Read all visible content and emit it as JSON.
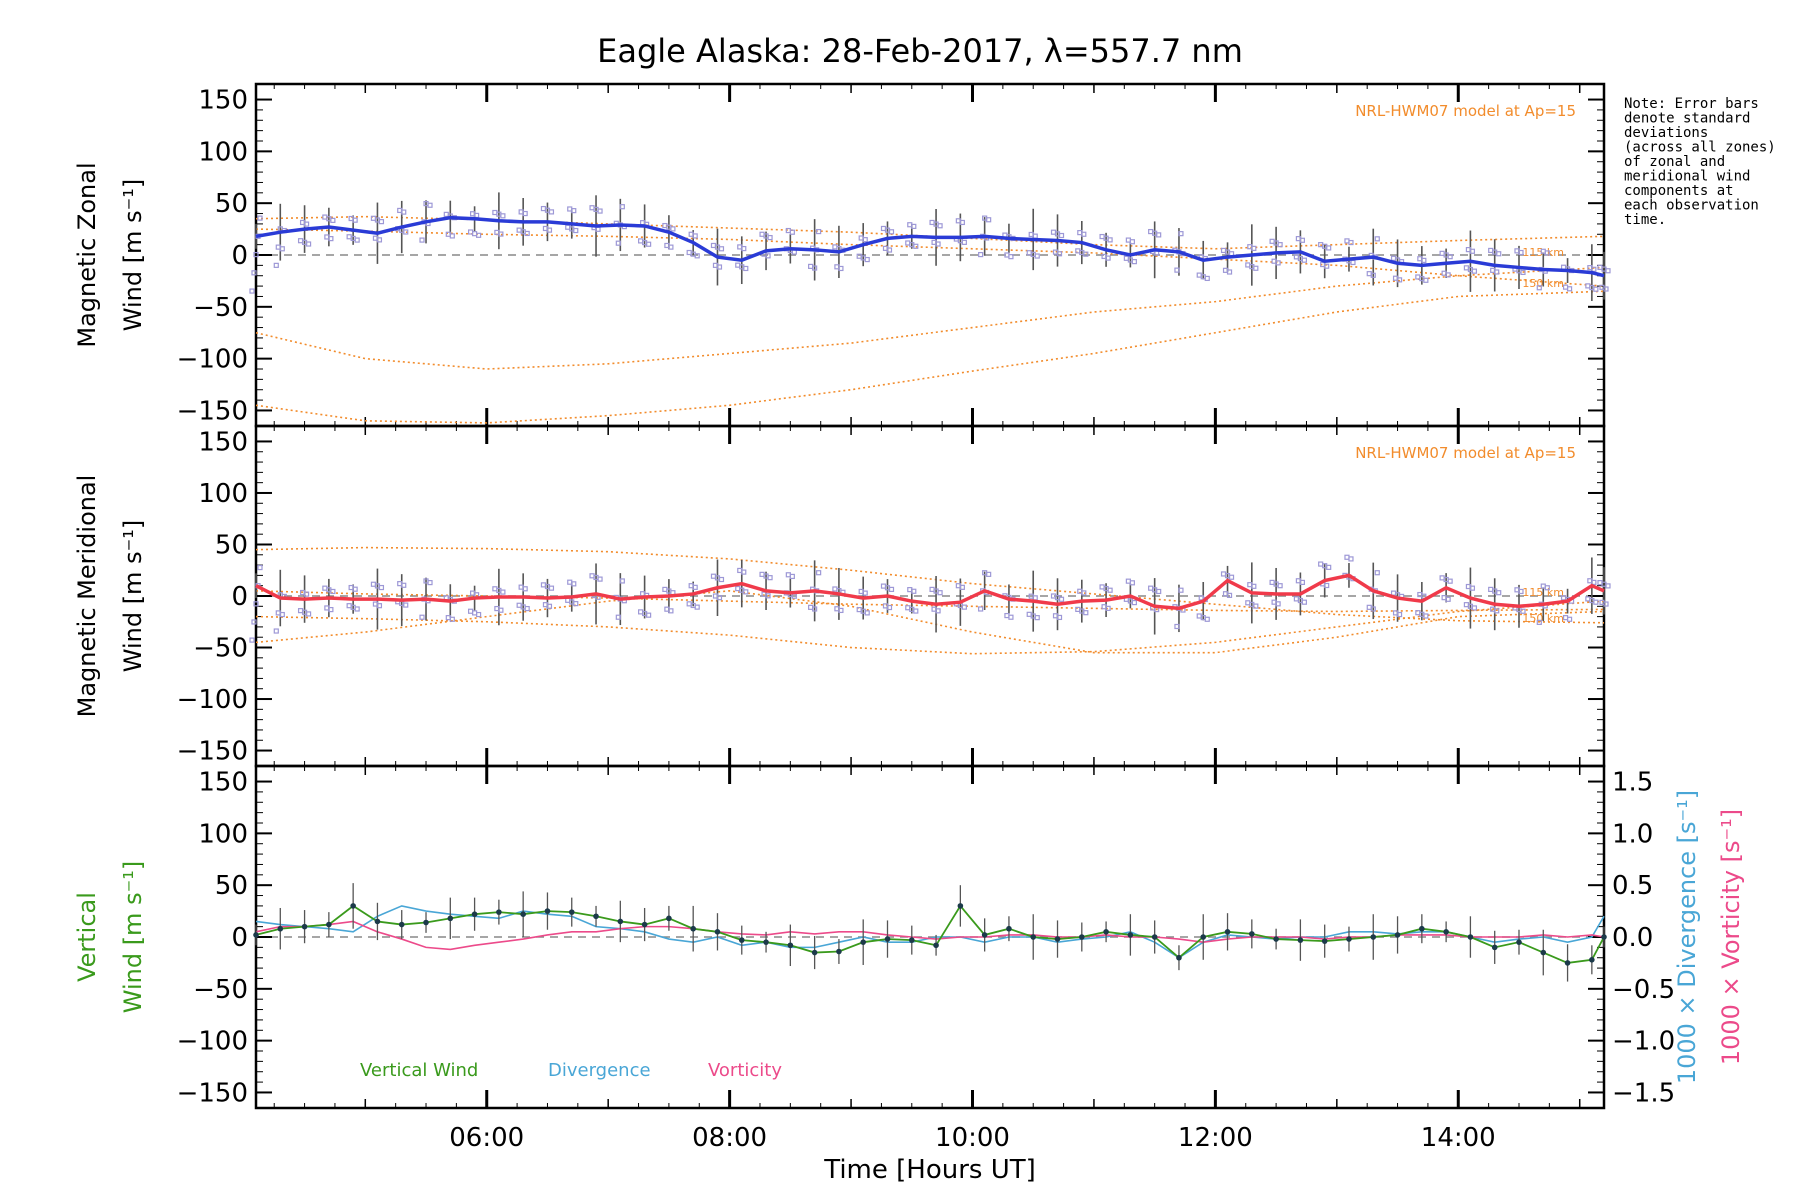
{
  "title": "Eagle Alaska: 28-Feb-2017, λ=557.7 nm",
  "colors": {
    "zonal": "#2a3bd6",
    "meridional": "#f03a4a",
    "vertical": "#3a9a1c",
    "divergence": "#49a6d6",
    "vorticity": "#ec4a8a",
    "model": "#f28c2c",
    "scatter": "#9d98d6",
    "errorbar": "#555555"
  },
  "note": {
    "lines": [
      "Note: Error bars",
      "denote standard",
      "deviations",
      "(across all zones)",
      "of zonal and",
      "meridional wind",
      "components at",
      "each observation",
      "time."
    ]
  },
  "chart_data": [
    {
      "type": "line",
      "title": "",
      "ylabel_lines": [
        "Magnetic Zonal",
        "Wind [m s⁻¹]"
      ],
      "xlim": [
        4.1,
        15.2
      ],
      "ylim": [
        -165,
        165
      ],
      "yticks": [
        150,
        100,
        50,
        0,
        -50,
        -100,
        -150
      ],
      "model_label": "NRL-HWM07 model at Ap=15",
      "model_alt_labels": [
        "115 km",
        "150 km"
      ],
      "series": [
        {
          "x": [
            4.1,
            4.3,
            4.5,
            4.7,
            4.9,
            5.1,
            5.3,
            5.5,
            5.7,
            5.9,
            6.1,
            6.3,
            6.5,
            6.7,
            6.9,
            7.1,
            7.3,
            7.5,
            7.7,
            7.9,
            8.1,
            8.3,
            8.5,
            8.7,
            8.9,
            9.1,
            9.3,
            9.5,
            9.7,
            9.9,
            10.1,
            10.3,
            10.5,
            10.7,
            10.9,
            11.1,
            11.3,
            11.5,
            11.7,
            11.9,
            12.1,
            12.3,
            12.5,
            12.7,
            12.9,
            13.1,
            13.3,
            13.5,
            13.7,
            13.9,
            14.1,
            14.3,
            14.5,
            14.7,
            14.9,
            15.1,
            15.2
          ],
          "y": [
            18,
            22,
            25,
            27,
            24,
            21,
            27,
            32,
            36,
            35,
            33,
            32,
            32,
            30,
            28,
            29,
            28,
            22,
            12,
            -2,
            -5,
            4,
            6,
            5,
            3,
            10,
            16,
            18,
            17,
            17,
            18,
            16,
            15,
            14,
            12,
            5,
            0,
            5,
            3,
            -5,
            -2,
            0,
            2,
            3,
            -6,
            -4,
            -2,
            -8,
            -10,
            -8,
            -6,
            -10,
            -12,
            -14,
            -15,
            -17,
            -20
          ]
        }
      ],
      "model_curves": [
        {
          "x": [
            4.1,
            5,
            6,
            7,
            8,
            9,
            10,
            11,
            12,
            13,
            14,
            15.2
          ],
          "y": [
            35,
            37,
            34,
            30,
            26,
            22,
            16,
            10,
            6,
            10,
            14,
            18
          ]
        },
        {
          "x": [
            4.1,
            5,
            6,
            7,
            8,
            9,
            10,
            11,
            12,
            13,
            14,
            15.2
          ],
          "y": [
            25,
            23,
            20,
            18,
            15,
            10,
            6,
            2,
            -4,
            -10,
            -20,
            -30
          ]
        },
        {
          "x": [
            4.1,
            5,
            6,
            7,
            8,
            9,
            10,
            11,
            12,
            13,
            14,
            15.2
          ],
          "y": [
            -75,
            -100,
            -110,
            -105,
            -95,
            -85,
            -70,
            -55,
            -45,
            -30,
            -20,
            -12
          ]
        },
        {
          "x": [
            4.1,
            5,
            6,
            7,
            8,
            9,
            10,
            11,
            12,
            13,
            14,
            15.2
          ],
          "y": [
            -145,
            -160,
            -162,
            -155,
            -145,
            -130,
            -112,
            -95,
            -75,
            -55,
            -40,
            -35
          ]
        }
      ]
    },
    {
      "type": "line",
      "title": "",
      "ylabel_lines": [
        "Magnetic Meridional",
        "Wind [m s⁻¹]"
      ],
      "xlim": [
        4.1,
        15.2
      ],
      "ylim": [
        -165,
        165
      ],
      "yticks": [
        150,
        100,
        50,
        0,
        -50,
        -100,
        -150
      ],
      "model_label": "NRL-HWM07 model at Ap=15",
      "model_alt_labels": [
        "115 km",
        "150 km"
      ],
      "series": [
        {
          "x": [
            4.1,
            4.3,
            4.5,
            4.7,
            4.9,
            5.1,
            5.3,
            5.5,
            5.7,
            5.9,
            6.1,
            6.3,
            6.5,
            6.7,
            6.9,
            7.1,
            7.3,
            7.5,
            7.7,
            7.9,
            8.1,
            8.3,
            8.5,
            8.7,
            8.9,
            9.1,
            9.3,
            9.5,
            9.7,
            9.9,
            10.1,
            10.3,
            10.5,
            10.7,
            10.9,
            11.1,
            11.3,
            11.5,
            11.7,
            11.9,
            12.1,
            12.3,
            12.5,
            12.7,
            12.9,
            13.1,
            13.3,
            13.5,
            13.7,
            13.9,
            14.1,
            14.3,
            14.5,
            14.7,
            14.9,
            15.1,
            15.2
          ],
          "y": [
            10,
            -2,
            -3,
            -2,
            -3,
            -3,
            -4,
            -3,
            -5,
            -2,
            -1,
            -1,
            -2,
            -1,
            2,
            -3,
            -1,
            0,
            2,
            8,
            12,
            5,
            3,
            5,
            2,
            -2,
            0,
            -5,
            -8,
            -6,
            5,
            -3,
            -5,
            -8,
            -5,
            -4,
            0,
            -10,
            -12,
            -5,
            15,
            3,
            2,
            2,
            15,
            20,
            5,
            -2,
            -5,
            8,
            -2,
            -8,
            -10,
            -8,
            -5,
            10,
            5
          ]
        }
      ],
      "model_curves": [
        {
          "x": [
            4.1,
            5,
            6,
            7,
            8,
            9,
            10,
            11,
            12,
            13,
            14,
            15.2
          ],
          "y": [
            45,
            47,
            46,
            43,
            36,
            25,
            12,
            2,
            -8,
            -18,
            -24,
            -26
          ]
        },
        {
          "x": [
            4.1,
            5,
            6,
            7,
            8,
            9,
            10,
            11,
            12,
            13,
            14,
            15.2
          ],
          "y": [
            5,
            2,
            0,
            -2,
            -5,
            -8,
            -10,
            -12,
            -14,
            -15,
            -14,
            -13
          ]
        },
        {
          "x": [
            4.1,
            5,
            6,
            7,
            8,
            9,
            10,
            11,
            12,
            13,
            14,
            15.2
          ],
          "y": [
            -45,
            -35,
            -20,
            -5,
            5,
            -10,
            -35,
            -55,
            -55,
            -40,
            -20,
            -15
          ]
        },
        {
          "x": [
            4.1,
            5,
            6,
            7,
            8,
            9,
            10,
            11,
            12,
            13,
            14,
            15.2
          ],
          "y": [
            -20,
            -22,
            -25,
            -30,
            -38,
            -50,
            -56,
            -54,
            -45,
            -30,
            -15,
            -5
          ]
        }
      ]
    },
    {
      "type": "line",
      "title": "",
      "ylabel_lines": [
        "Vertical",
        "Wind [m s⁻¹]"
      ],
      "y2label_lines": [
        "1000 × Divergence [s⁻¹]",
        "1000 × Vorticity [s⁻¹]"
      ],
      "xlabel": "Time [Hours UT]",
      "xticklabels": [
        "06:00",
        "08:00",
        "10:00",
        "12:00",
        "14:00"
      ],
      "xticks": [
        6,
        8,
        10,
        12,
        14
      ],
      "xlim": [
        4.1,
        15.2
      ],
      "ylim": [
        -165,
        165
      ],
      "yticks": [
        150,
        100,
        50,
        0,
        -50,
        -100,
        -150
      ],
      "y2lim": [
        -1.65,
        1.65
      ],
      "y2ticks": [
        1.5,
        1.0,
        0.5,
        0.0,
        -0.5,
        -1.0,
        -1.5
      ],
      "y2ticklabels": [
        "1.5",
        "1.0",
        "0.5",
        "0.0",
        "−0.5",
        "−1.0",
        "−1.5"
      ],
      "legend": [
        "Vertical Wind",
        "Divergence",
        "Vorticity"
      ],
      "series": [
        {
          "name": "Vertical Wind",
          "x": [
            4.1,
            4.3,
            4.5,
            4.7,
            4.9,
            5.1,
            5.3,
            5.5,
            5.7,
            5.9,
            6.1,
            6.3,
            6.5,
            6.7,
            6.9,
            7.1,
            7.3,
            7.5,
            7.7,
            7.9,
            8.1,
            8.3,
            8.5,
            8.7,
            8.9,
            9.1,
            9.3,
            9.5,
            9.7,
            9.9,
            10.1,
            10.3,
            10.5,
            10.7,
            10.9,
            11.1,
            11.3,
            11.5,
            11.7,
            11.9,
            12.1,
            12.3,
            12.5,
            12.7,
            12.9,
            13.1,
            13.3,
            13.5,
            13.7,
            13.9,
            14.1,
            14.3,
            14.5,
            14.7,
            14.9,
            15.1,
            15.2
          ],
          "y": [
            2,
            8,
            10,
            12,
            30,
            15,
            12,
            14,
            18,
            22,
            24,
            22,
            25,
            24,
            20,
            15,
            12,
            18,
            8,
            5,
            -3,
            -5,
            -8,
            -15,
            -14,
            -5,
            -2,
            -3,
            -8,
            30,
            2,
            8,
            0,
            -2,
            0,
            5,
            2,
            0,
            -20,
            0,
            5,
            3,
            -2,
            -3,
            -4,
            -2,
            0,
            2,
            8,
            5,
            0,
            -10,
            -5,
            -15,
            -25,
            -22,
            0
          ]
        },
        {
          "name": "Divergence",
          "x": [
            4.1,
            4.3,
            4.5,
            4.7,
            4.9,
            5.1,
            5.3,
            5.5,
            5.7,
            5.9,
            6.1,
            6.3,
            6.5,
            6.7,
            6.9,
            7.1,
            7.3,
            7.5,
            7.7,
            7.9,
            8.1,
            8.3,
            8.5,
            8.7,
            8.9,
            9.1,
            9.3,
            9.5,
            9.7,
            9.9,
            10.1,
            10.3,
            10.5,
            10.7,
            10.9,
            11.1,
            11.3,
            11.5,
            11.7,
            11.9,
            12.1,
            12.3,
            12.5,
            12.7,
            12.9,
            13.1,
            13.3,
            13.5,
            13.7,
            13.9,
            14.1,
            14.3,
            14.5,
            14.7,
            14.9,
            15.1,
            15.2
          ],
          "y": [
            0.15,
            0.12,
            0.1,
            0.08,
            0.05,
            0.2,
            0.3,
            0.25,
            0.22,
            0.2,
            0.18,
            0.25,
            0.22,
            0.2,
            0.1,
            0.08,
            0.05,
            -0.02,
            -0.05,
            0.0,
            -0.08,
            -0.05,
            -0.1,
            -0.1,
            -0.05,
            0.0,
            -0.05,
            -0.05,
            0.0,
            0.0,
            -0.05,
            0.0,
            0.0,
            -0.05,
            -0.02,
            0.0,
            0.05,
            -0.05,
            -0.2,
            -0.05,
            0.02,
            0.0,
            -0.02,
            0.0,
            0.0,
            0.05,
            0.05,
            0.03,
            0.05,
            0.05,
            0.0,
            -0.05,
            -0.02,
            0.0,
            -0.05,
            0.0,
            0.2
          ]
        },
        {
          "name": "Vorticity",
          "x": [
            4.1,
            4.3,
            4.5,
            4.7,
            4.9,
            5.1,
            5.3,
            5.5,
            5.7,
            5.9,
            6.1,
            6.3,
            6.5,
            6.7,
            6.9,
            7.1,
            7.3,
            7.5,
            7.7,
            7.9,
            8.1,
            8.3,
            8.5,
            8.7,
            8.9,
            9.1,
            9.3,
            9.5,
            9.7,
            9.9,
            10.1,
            10.3,
            10.5,
            10.7,
            10.9,
            11.1,
            11.3,
            11.5,
            11.7,
            11.9,
            12.1,
            12.3,
            12.5,
            12.7,
            12.9,
            13.1,
            13.3,
            13.5,
            13.7,
            13.9,
            14.1,
            14.3,
            14.5,
            14.7,
            14.9,
            15.1,
            15.2
          ],
          "y": [
            0.05,
            0.1,
            0.1,
            0.12,
            0.15,
            0.05,
            -0.02,
            -0.1,
            -0.12,
            -0.08,
            -0.05,
            -0.02,
            0.02,
            0.05,
            0.05,
            0.08,
            0.1,
            0.1,
            0.08,
            0.05,
            0.03,
            0.02,
            0.05,
            0.03,
            0.05,
            0.05,
            0.02,
            0.0,
            -0.02,
            0.0,
            0.0,
            0.02,
            0.02,
            0.0,
            0.0,
            0.02,
            0.0,
            0.0,
            -0.02,
            -0.05,
            -0.02,
            0.0,
            0.0,
            0.0,
            -0.02,
            0.0,
            0.0,
            0.02,
            0.02,
            0.02,
            0.0,
            0.0,
            0.0,
            0.02,
            0.0,
            0.02,
            0.0
          ]
        }
      ]
    }
  ]
}
